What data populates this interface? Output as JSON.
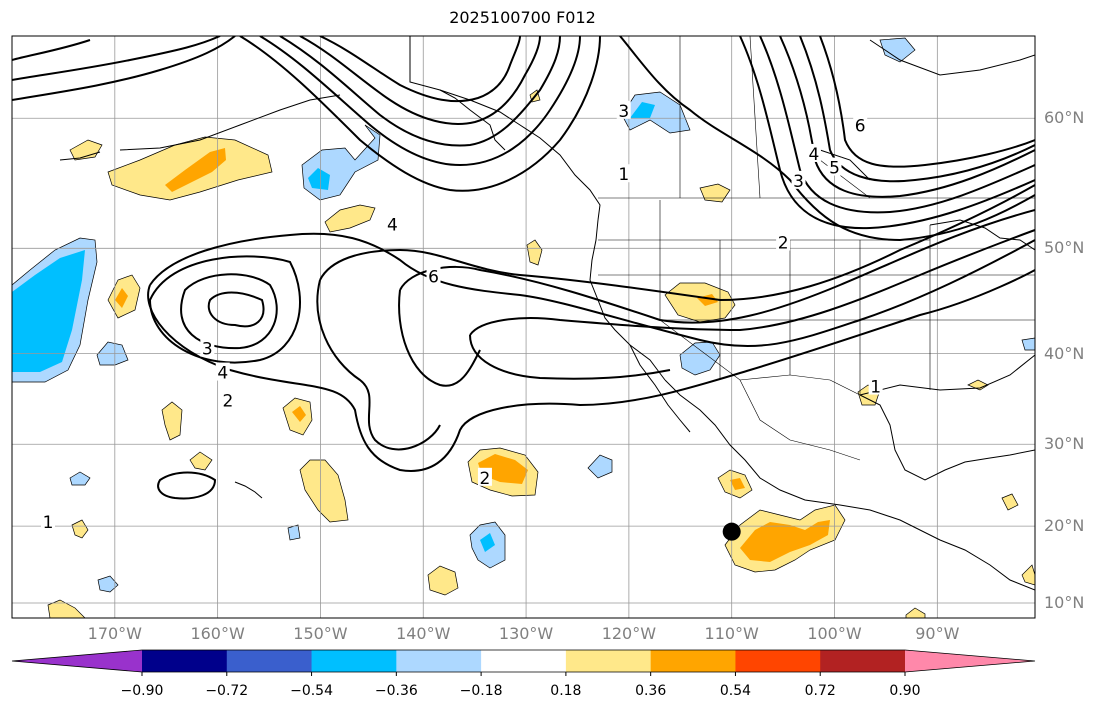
{
  "title": "2025100700 F012",
  "lat_labels": [
    {
      "label": "60°N",
      "lat": 60
    },
    {
      "label": "50°N",
      "lat": 50
    },
    {
      "label": "40°N",
      "lat": 40
    },
    {
      "label": "30°N",
      "lat": 30
    },
    {
      "label": "20°N",
      "lat": 20
    },
    {
      "label": "10°N",
      "lat": 10
    }
  ],
  "lon_labels": [
    {
      "label": "170°W",
      "lon": -170
    },
    {
      "label": "160°W",
      "lon": -160
    },
    {
      "label": "150°W",
      "lon": -150
    },
    {
      "label": "140°W",
      "lon": -140
    },
    {
      "label": "130°W",
      "lon": -130
    },
    {
      "label": "120°W",
      "lon": -120
    },
    {
      "label": "110°W",
      "lon": -110
    },
    {
      "label": "100°W",
      "lon": -100
    },
    {
      "label": "90°W",
      "lon": -90
    }
  ],
  "colorbar": {
    "levels": [
      "−0.90",
      "−0.72",
      "−0.54",
      "−0.36",
      "−0.18",
      "0.18",
      "0.36",
      "0.54",
      "0.72",
      "0.90"
    ],
    "colors": [
      "#9932cc",
      "#00008b",
      "#3a5fcd",
      "#00bfff",
      "#add8ff",
      "#ffffff",
      "#ffe88a",
      "#ffa500",
      "#ff4500",
      "#b22222",
      "#ff88aa"
    ]
  },
  "contour_labels": [
    {
      "text": "3",
      "lon": -161,
      "lat": 40.5
    },
    {
      "text": "4",
      "lon": -159.5,
      "lat": 38
    },
    {
      "text": "2",
      "lon": -159,
      "lat": 35
    },
    {
      "text": "2",
      "lon": -134,
      "lat": 26
    },
    {
      "text": "1",
      "lon": -176.5,
      "lat": 20.5
    },
    {
      "text": "6",
      "lon": -139,
      "lat": 47.5
    },
    {
      "text": "4",
      "lon": -143,
      "lat": 52
    },
    {
      "text": "1",
      "lon": -120.5,
      "lat": 56
    },
    {
      "text": "3",
      "lon": -120.5,
      "lat": 60.5
    },
    {
      "text": "6",
      "lon": -97.5,
      "lat": 59.5
    },
    {
      "text": "5",
      "lon": -100,
      "lat": 56.5
    },
    {
      "text": "4",
      "lon": -102,
      "lat": 57.5
    },
    {
      "text": "3",
      "lon": -103.5,
      "lat": 55.5
    },
    {
      "text": "2",
      "lon": -105,
      "lat": 50.5
    },
    {
      "text": "1",
      "lon": -96,
      "lat": 36.5
    }
  ],
  "marker": {
    "name": "storm-center",
    "lon": -110,
    "lat": 19.3
  }
}
